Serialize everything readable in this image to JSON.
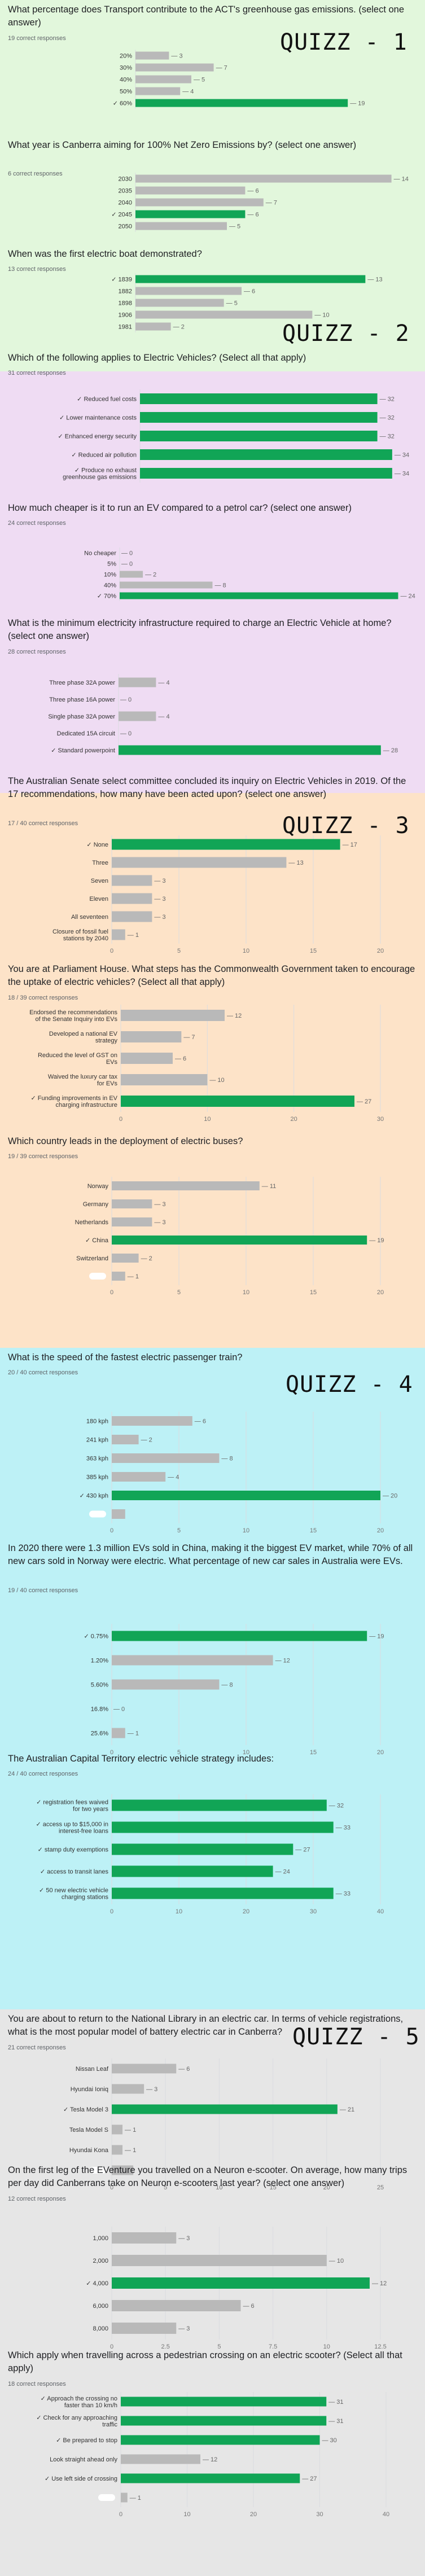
{
  "sections": [
    {
      "id": "q1",
      "color": "#e2f7dc",
      "badge": "QUIZZ - 1"
    },
    {
      "id": "q2",
      "color": "#efdcf3",
      "badge": "QUIZZ - 2"
    },
    {
      "id": "q3",
      "color": "#fde3c8",
      "badge": "QUIZZ - 3"
    },
    {
      "id": "q4",
      "color": "#bdf1f6",
      "badge": "QUIZZ - 4"
    },
    {
      "id": "q5",
      "color": "#e6e6e6",
      "badge": "QUIZZ - 5"
    }
  ],
  "chart_data": [
    {
      "type": "bar",
      "title": "What percentage does Transport contribute to the ACT's greenhouse gas emissions. (select one answer)",
      "count_label": "19     correct responses",
      "categories": [
        "20%",
        "30%",
        "40%",
        "50%",
        "✓ 60%"
      ],
      "values": [
        3,
        7,
        5,
        4,
        19
      ],
      "correct": [
        false,
        false,
        false,
        false,
        true
      ],
      "value_labels": [
        "3",
        "7",
        "5",
        "4",
        "19"
      ],
      "xlim": [
        0,
        20
      ],
      "ticks": [],
      "grid": false
    },
    {
      "type": "bar",
      "title": "What year is Canberra aiming for 100% Net Zero Emissions by? (select one answer)",
      "count_label": "6     correct responses",
      "categories": [
        "2030",
        "2035",
        "2040",
        "✓ 2045",
        "2050"
      ],
      "values": [
        14,
        6,
        7,
        6,
        5
      ],
      "correct": [
        false,
        false,
        false,
        true,
        false
      ],
      "value_labels": [
        "14",
        "6",
        "7",
        "6",
        "5"
      ],
      "xlim": [
        0,
        15
      ],
      "ticks": [],
      "grid": false
    },
    {
      "type": "bar",
      "title": "When was the first electric boat demonstrated?",
      "count_label": "13     correct responses",
      "categories": [
        "✓ 1839",
        "1882",
        "1898",
        "1906",
        "1981"
      ],
      "values": [
        13,
        6,
        5,
        10,
        2
      ],
      "correct": [
        true,
        false,
        false,
        false,
        false
      ],
      "value_labels": [
        "13",
        "6",
        "5",
        "10",
        "2"
      ],
      "xlim": [
        0,
        15
      ],
      "ticks": [],
      "grid": false
    },
    {
      "type": "bar",
      "title": "Which of the following applies to Electric Vehicles? (Select all that apply)",
      "count_label": "31     correct responses",
      "categories": [
        "✓ Reduced fuel costs",
        "✓ Lower maintenance costs",
        "✓ Enhanced energy security",
        "✓ Reduced air pollution",
        "✓ Produce no exhaust greenhouse gas emissions"
      ],
      "values": [
        32,
        32,
        32,
        34,
        34
      ],
      "correct": [
        true,
        true,
        true,
        true,
        true
      ],
      "value_labels": [
        "32",
        "32",
        "32",
        "34",
        "34"
      ],
      "xlim": [
        0,
        35
      ],
      "ticks": [],
      "grid": false
    },
    {
      "type": "bar",
      "title": "How much cheaper is it to run an EV compared to a petrol car? (select one answer)",
      "count_label": "24     correct responses",
      "categories": [
        "No cheaper",
        "5%",
        "10%",
        "40%",
        "✓ 70%"
      ],
      "values": [
        0,
        0,
        2,
        8,
        24
      ],
      "correct": [
        false,
        false,
        false,
        false,
        true
      ],
      "value_labels": [
        "0",
        "0",
        "2",
        "8",
        "24"
      ],
      "xlim": [
        0,
        25
      ],
      "ticks": [],
      "grid": false
    },
    {
      "type": "bar",
      "title": "What is the minimum electricity infrastructure required to charge an Electric Vehicle at home? (select one answer)",
      "count_label": "28     correct responses",
      "categories": [
        "Three phase 32A power",
        "Three phase 16A power",
        "Single phase 32A power",
        "Dedicated 15A circuit",
        "✓ Standard powerpoint"
      ],
      "values": [
        4,
        0,
        4,
        0,
        28
      ],
      "correct": [
        false,
        false,
        false,
        false,
        true
      ],
      "value_labels": [
        "4",
        "0",
        "4",
        "0",
        "28"
      ],
      "xlim": [
        0,
        30
      ],
      "ticks": [],
      "grid": false
    },
    {
      "type": "bar",
      "title": "The Australian Senate select committee concluded its inquiry on Electric Vehicles in 2019. Of the 17 recommendations, how many have been acted upon? (select one answer)",
      "count_label": "17 / 40 correct responses",
      "categories": [
        "✓ None",
        "Three",
        "Seven",
        "Eleven",
        "All seventeen",
        "Closure of fossil fuel stations by 2040"
      ],
      "values": [
        17,
        13,
        3,
        3,
        3,
        1
      ],
      "correct": [
        true,
        false,
        false,
        false,
        false,
        false
      ],
      "value_labels": [
        "17",
        "13",
        "3",
        "3",
        "3",
        "1"
      ],
      "xlim": [
        0,
        20
      ],
      "ticks": [
        0,
        5,
        10,
        15,
        20
      ],
      "grid": true
    },
    {
      "type": "bar",
      "title": "You are at Parliament House. What steps has the Commonwealth Government taken to encourage the uptake of electric vehicles? (Select all that apply)",
      "count_label": "18 / 39 correct responses",
      "categories": [
        "Endorsed the recommendations of the Senate Inquiry into EVs",
        "Developed a national EV strategy",
        "Reduced the level of GST on EVs",
        "Waived the luxury car tax for EVs",
        "✓ Funding improvements in EV charging infrastructure"
      ],
      "values": [
        12,
        7,
        6,
        10,
        27
      ],
      "correct": [
        false,
        false,
        false,
        false,
        true
      ],
      "value_labels": [
        "12",
        "7",
        "6",
        "10",
        "27"
      ],
      "xlim": [
        0,
        30
      ],
      "ticks": [
        0,
        10,
        20,
        30
      ],
      "grid": true
    },
    {
      "type": "bar",
      "title": "Which country leads in the deployment of electric buses?",
      "count_label": "19 / 39 correct responses",
      "categories": [
        "Norway",
        "Germany",
        "Netherlands",
        "✓ China",
        "Switzerland",
        ""
      ],
      "values": [
        11,
        3,
        3,
        19,
        2,
        1
      ],
      "correct": [
        false,
        false,
        false,
        true,
        false,
        false
      ],
      "value_labels": [
        "11",
        "3",
        "3",
        "19",
        "2",
        "1"
      ],
      "xlim": [
        0,
        20
      ],
      "ticks": [
        0,
        5,
        10,
        15,
        20
      ],
      "grid": true
    },
    {
      "type": "bar",
      "title": "What is the speed of the fastest electric passenger train?",
      "count_label": "20 / 40 correct responses",
      "categories": [
        "180 kph",
        "241 kph",
        "363 kph",
        "385 kph",
        "✓ 430 kph",
        ""
      ],
      "values": [
        6,
        2,
        8,
        4,
        20,
        1
      ],
      "correct": [
        false,
        false,
        false,
        false,
        true,
        false
      ],
      "value_labels": [
        "6",
        "2",
        "8",
        "4",
        "20",
        ""
      ],
      "xlim": [
        0,
        20
      ],
      "ticks": [
        0,
        5,
        10,
        15,
        20
      ],
      "grid": true
    },
    {
      "type": "bar",
      "title": "In 2020 there were 1.3 million EVs sold in China, making it the biggest EV market, while 70% of all new cars sold in Norway were electric. What percentage of new car sales in Australia were EVs.",
      "count_label": "19 / 40 correct responses",
      "categories": [
        "✓ 0.75%",
        "1.20%",
        "5.60%",
        "16.8%",
        "25.6%"
      ],
      "values": [
        19,
        12,
        8,
        0,
        1
      ],
      "correct": [
        true,
        false,
        false,
        false,
        false
      ],
      "value_labels": [
        "19",
        "12",
        "8",
        "0",
        "1"
      ],
      "xlim": [
        0,
        20
      ],
      "ticks": [
        0,
        5,
        10,
        15,
        20
      ],
      "grid": true
    },
    {
      "type": "bar",
      "title": "The Australian Capital Territory electric vehicle strategy includes:",
      "count_label": "24 / 40 correct responses",
      "categories": [
        "✓ registration fees waived for two years",
        "✓ access up to $15,000 in interest-free loans",
        "✓ stamp duty exemptions",
        "✓ access to transit lanes",
        "✓ 50 new electric vehicle charging stations"
      ],
      "values": [
        32,
        33,
        27,
        24,
        33
      ],
      "correct": [
        true,
        true,
        true,
        true,
        true
      ],
      "value_labels": [
        "32",
        "33",
        "27",
        "24",
        "33"
      ],
      "xlim": [
        0,
        40
      ],
      "ticks": [
        0,
        10,
        20,
        30,
        40
      ],
      "grid": true
    },
    {
      "type": "bar",
      "title": "You are about to return to the National Library in an electric car. In terms of vehicle registrations, what is the most popular model of battery electric car in Canberra?",
      "count_label": "21     correct responses",
      "categories": [
        "Nissan Leaf",
        "Hyundai Ioniq",
        "✓ Tesla Model 3",
        "Tesla Model S",
        "Hyundai Kona",
        ""
      ],
      "values": [
        6,
        3,
        21,
        1,
        1,
        2
      ],
      "correct": [
        false,
        false,
        true,
        false,
        false,
        false
      ],
      "value_labels": [
        "6",
        "3",
        "21",
        "1",
        "1",
        ""
      ],
      "xlim": [
        0,
        25
      ],
      "ticks": [
        0,
        5,
        10,
        15,
        20,
        25
      ],
      "grid": true
    },
    {
      "type": "bar",
      "title": "On the first leg of the EVenture you travelled on a Neuron e-scooter.  On average, how many trips per day did Canberrans take on Neuron e-scooters last year? (select one answer)",
      "count_label": "12     correct responses",
      "categories": [
        "1,000",
        "2,000",
        "✓ 4,000",
        "6,000",
        "8,000"
      ],
      "values": [
        3,
        10,
        12,
        6,
        3
      ],
      "correct": [
        false,
        false,
        true,
        false,
        false
      ],
      "value_labels": [
        "3",
        "10",
        "12",
        "6",
        "3"
      ],
      "xlim": [
        0,
        12.5
      ],
      "ticks": [
        0,
        2.5,
        5,
        7.5,
        10,
        12.5
      ],
      "tick_labels": [
        "0",
        "2.5",
        "5",
        "7.5",
        "10",
        "12.5"
      ],
      "grid": true
    },
    {
      "type": "bar",
      "title": "Which apply when travelling across a pedestrian crossing on an electric scooter? (Select all that apply)",
      "count_label": "18     correct responses",
      "categories": [
        "✓ Approach the crossing no faster than 10 km/h",
        "✓ Check for any approaching traffic",
        "✓ Be prepared to stop",
        "Look straight ahead only",
        "✓ Use left side of crossing",
        ""
      ],
      "values": [
        31,
        31,
        30,
        12,
        27,
        1
      ],
      "correct": [
        true,
        true,
        true,
        false,
        true,
        false
      ],
      "value_labels": [
        "31",
        "31",
        "30",
        "12",
        "27",
        "1"
      ],
      "xlim": [
        0,
        40
      ],
      "ticks": [
        0,
        10,
        20,
        30,
        40
      ],
      "grid": true
    }
  ]
}
